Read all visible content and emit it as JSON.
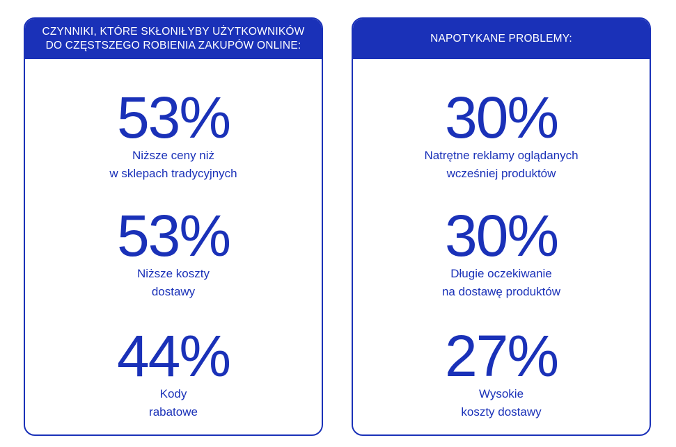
{
  "colors": {
    "accent": "#1a31b8",
    "background": "#ffffff"
  },
  "panels": [
    {
      "header": "CZYNNIKI, KTÓRE SKŁONIŁYBY UŻYTKOWNIKÓW\nDO CZĘSTSZEGO ROBIENIA ZAKUPÓW ONLINE:",
      "stats": [
        {
          "value": "53%",
          "label": "Niższe ceny niż\nw sklepach tradycyjnych"
        },
        {
          "value": "53%",
          "label": "Niższe koszty\ndostawy"
        },
        {
          "value": "44%",
          "label": "Kody\nrabatowe"
        }
      ]
    },
    {
      "header": "NAPOTYKANE PROBLEMY:",
      "stats": [
        {
          "value": "30%",
          "label": "Natrętne reklamy oglądanych\nwcześniej produktów"
        },
        {
          "value": "30%",
          "label": "Długie oczekiwanie\nna dostawę produktów"
        },
        {
          "value": "27%",
          "label": "Wysokie\nkoszty dostawy"
        }
      ]
    }
  ]
}
